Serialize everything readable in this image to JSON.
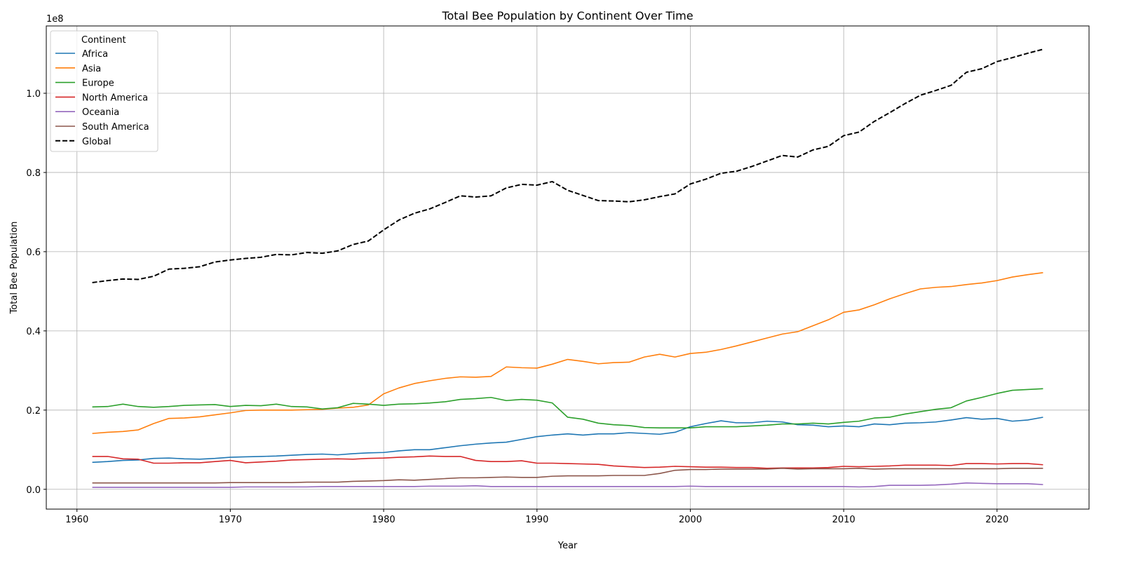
{
  "chart_data": {
    "type": "line",
    "title": "Total Bee Population by Continent Over Time",
    "xlabel": "Year",
    "ylabel": "Total Bee Population",
    "y_offset_label": "1e8",
    "y_scale": 100000000,
    "xlim": [
      1958,
      2026
    ],
    "ylim": [
      -0.05,
      1.17
    ],
    "x_ticks": [
      1960,
      1970,
      1980,
      1990,
      2000,
      2010,
      2020
    ],
    "y_ticks": [
      0.0,
      0.2,
      0.4,
      0.6,
      0.8,
      1.0
    ],
    "y_tick_labels": [
      "0.0",
      "0.2",
      "0.4",
      "0.6",
      "0.8",
      "1.0"
    ],
    "grid": true,
    "legend": {
      "title": "Continent",
      "placement": "upper left"
    },
    "start_year": 1961,
    "series": [
      {
        "name": "Africa",
        "color": "#1f77b4",
        "dashed": false,
        "values": [
          0.068,
          0.07,
          0.073,
          0.074,
          0.078,
          0.079,
          0.077,
          0.076,
          0.078,
          0.081,
          0.082,
          0.083,
          0.084,
          0.086,
          0.088,
          0.089,
          0.087,
          0.09,
          0.092,
          0.093,
          0.097,
          0.1,
          0.1,
          0.105,
          0.11,
          0.114,
          0.117,
          0.119,
          0.126,
          0.133,
          0.137,
          0.14,
          0.137,
          0.14,
          0.14,
          0.143,
          0.141,
          0.139,
          0.144,
          0.158,
          0.166,
          0.173,
          0.168,
          0.168,
          0.172,
          0.17,
          0.163,
          0.162,
          0.158,
          0.16,
          0.158,
          0.165,
          0.163,
          0.167,
          0.168,
          0.17,
          0.175,
          0.181,
          0.177,
          0.179,
          0.172,
          0.175,
          0.182
        ]
      },
      {
        "name": "Asia",
        "color": "#ff7f0e",
        "dashed": false,
        "values": [
          0.141,
          0.144,
          0.146,
          0.15,
          0.166,
          0.179,
          0.18,
          0.183,
          0.188,
          0.193,
          0.199,
          0.2,
          0.2,
          0.2,
          0.201,
          0.202,
          0.205,
          0.207,
          0.213,
          0.241,
          0.256,
          0.267,
          0.274,
          0.28,
          0.284,
          0.283,
          0.285,
          0.309,
          0.307,
          0.306,
          0.316,
          0.328,
          0.323,
          0.317,
          0.32,
          0.321,
          0.334,
          0.341,
          0.334,
          0.343,
          0.346,
          0.353,
          0.362,
          0.372,
          0.382,
          0.392,
          0.398,
          0.413,
          0.428,
          0.447,
          0.453,
          0.466,
          0.481,
          0.494,
          0.506,
          0.51,
          0.512,
          0.517,
          0.521,
          0.527,
          0.536,
          0.542,
          0.547
        ]
      },
      {
        "name": "Europe",
        "color": "#2ca02c",
        "dashed": false,
        "values": [
          0.208,
          0.209,
          0.215,
          0.209,
          0.207,
          0.209,
          0.212,
          0.213,
          0.214,
          0.209,
          0.212,
          0.211,
          0.215,
          0.209,
          0.208,
          0.203,
          0.206,
          0.217,
          0.215,
          0.212,
          0.215,
          0.216,
          0.218,
          0.221,
          0.227,
          0.229,
          0.232,
          0.224,
          0.227,
          0.225,
          0.218,
          0.182,
          0.177,
          0.167,
          0.163,
          0.161,
          0.156,
          0.155,
          0.155,
          0.155,
          0.158,
          0.158,
          0.158,
          0.16,
          0.162,
          0.165,
          0.165,
          0.167,
          0.165,
          0.169,
          0.172,
          0.18,
          0.182,
          0.19,
          0.196,
          0.202,
          0.206,
          0.223,
          0.232,
          0.242,
          0.25,
          0.252,
          0.254
        ]
      },
      {
        "name": "North America",
        "color": "#d62728",
        "dashed": false,
        "values": [
          0.083,
          0.083,
          0.077,
          0.076,
          0.066,
          0.066,
          0.067,
          0.067,
          0.07,
          0.073,
          0.067,
          0.069,
          0.071,
          0.074,
          0.075,
          0.076,
          0.077,
          0.076,
          0.078,
          0.079,
          0.081,
          0.082,
          0.084,
          0.083,
          0.083,
          0.073,
          0.07,
          0.07,
          0.072,
          0.066,
          0.066,
          0.065,
          0.064,
          0.063,
          0.059,
          0.057,
          0.055,
          0.056,
          0.058,
          0.057,
          0.056,
          0.056,
          0.055,
          0.055,
          0.053,
          0.054,
          0.054,
          0.054,
          0.055,
          0.058,
          0.057,
          0.058,
          0.059,
          0.061,
          0.061,
          0.061,
          0.06,
          0.065,
          0.065,
          0.064,
          0.065,
          0.065,
          0.062
        ]
      },
      {
        "name": "Oceania",
        "color": "#9467bd",
        "dashed": false,
        "values": [
          0.005,
          0.005,
          0.005,
          0.005,
          0.005,
          0.005,
          0.005,
          0.005,
          0.005,
          0.005,
          0.006,
          0.006,
          0.006,
          0.006,
          0.006,
          0.007,
          0.007,
          0.007,
          0.007,
          0.007,
          0.007,
          0.007,
          0.008,
          0.008,
          0.008,
          0.009,
          0.007,
          0.007,
          0.007,
          0.007,
          0.007,
          0.007,
          0.007,
          0.007,
          0.007,
          0.007,
          0.007,
          0.007,
          0.007,
          0.008,
          0.007,
          0.007,
          0.007,
          0.007,
          0.007,
          0.007,
          0.007,
          0.007,
          0.007,
          0.007,
          0.006,
          0.007,
          0.01,
          0.01,
          0.01,
          0.011,
          0.013,
          0.016,
          0.015,
          0.014,
          0.014,
          0.014,
          0.012
        ]
      },
      {
        "name": "South America",
        "color": "#8c564b",
        "dashed": false,
        "values": [
          0.016,
          0.016,
          0.016,
          0.016,
          0.016,
          0.016,
          0.016,
          0.016,
          0.016,
          0.017,
          0.017,
          0.017,
          0.017,
          0.017,
          0.018,
          0.018,
          0.018,
          0.02,
          0.021,
          0.022,
          0.024,
          0.023,
          0.025,
          0.027,
          0.029,
          0.029,
          0.03,
          0.031,
          0.03,
          0.03,
          0.033,
          0.034,
          0.034,
          0.034,
          0.035,
          0.035,
          0.035,
          0.04,
          0.048,
          0.05,
          0.05,
          0.051,
          0.051,
          0.051,
          0.051,
          0.053,
          0.051,
          0.052,
          0.052,
          0.052,
          0.053,
          0.051,
          0.052,
          0.052,
          0.052,
          0.052,
          0.052,
          0.052,
          0.052,
          0.052,
          0.053,
          0.053,
          0.053
        ]
      },
      {
        "name": "Global",
        "color": "#000000",
        "dashed": true,
        "values": [
          0.522,
          0.527,
          0.531,
          0.53,
          0.538,
          0.556,
          0.558,
          0.562,
          0.574,
          0.579,
          0.583,
          0.586,
          0.593,
          0.592,
          0.598,
          0.596,
          0.602,
          0.618,
          0.627,
          0.655,
          0.68,
          0.697,
          0.708,
          0.724,
          0.741,
          0.738,
          0.741,
          0.761,
          0.77,
          0.768,
          0.777,
          0.755,
          0.742,
          0.729,
          0.728,
          0.726,
          0.731,
          0.739,
          0.746,
          0.771,
          0.783,
          0.798,
          0.803,
          0.815,
          0.829,
          0.843,
          0.839,
          0.857,
          0.866,
          0.893,
          0.902,
          0.929,
          0.951,
          0.974,
          0.995,
          1.007,
          1.02,
          1.053,
          1.062,
          1.08,
          1.09,
          1.101,
          1.111
        ]
      }
    ]
  }
}
